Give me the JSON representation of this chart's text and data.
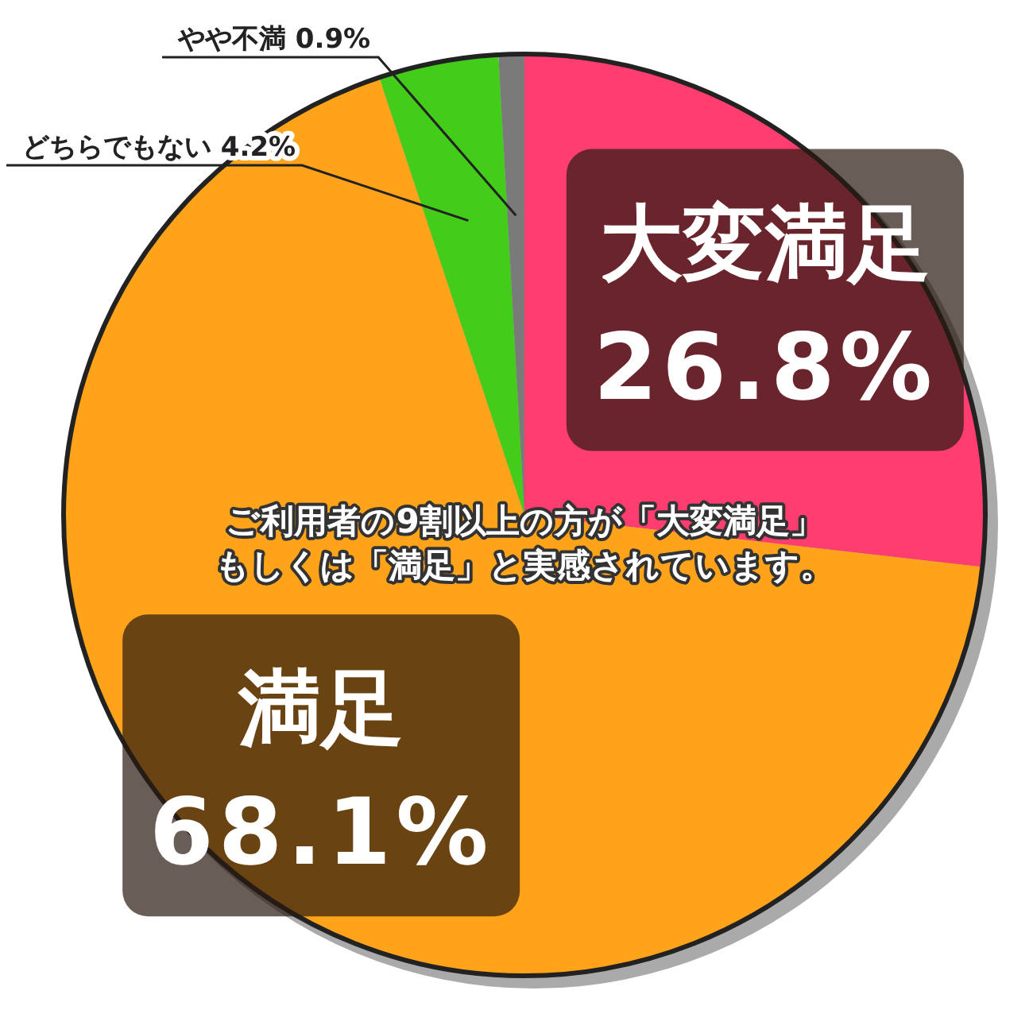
{
  "chart_data": {
    "type": "pie",
    "categories": [
      "大変満足",
      "満足",
      "どちらでもない",
      "やや不満"
    ],
    "values": [
      26.8,
      68.1,
      4.2,
      0.9
    ],
    "colors": [
      "#ff3d6e",
      "#ffa31a",
      "#44cc1a",
      "#7a7a7a"
    ],
    "value_labels": [
      "26.8%",
      "68.1%",
      "4.2%",
      "0.9%"
    ],
    "annotations": [
      "ご利用者の9割以上の方が「大変満足」",
      "もしくは「満足」と実感されています。"
    ]
  }
}
